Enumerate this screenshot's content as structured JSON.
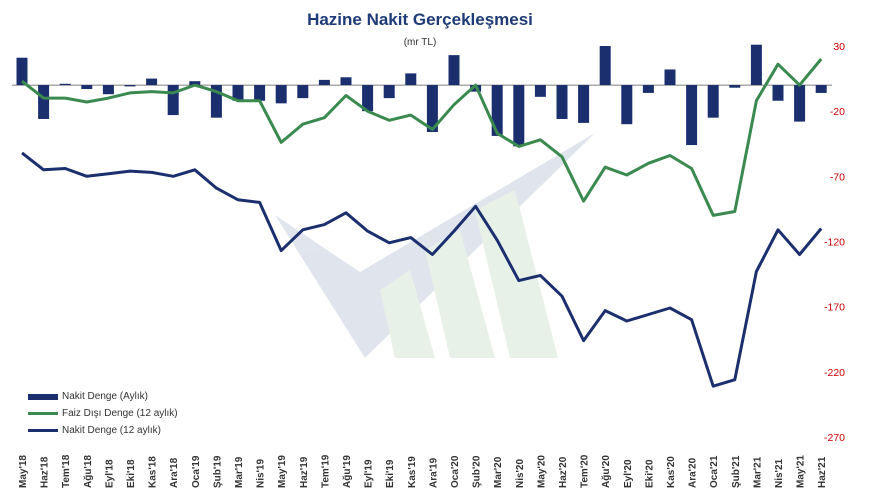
{
  "chart_data": {
    "type": "bar",
    "title": "Hazine Nakit Gerçekleşmesi",
    "subtitle": "(mr TL)",
    "categories": [
      "May'18",
      "Haz'18",
      "Tem'18",
      "Ağu'18",
      "Eyl'18",
      "Eki'18",
      "Kas'18",
      "Ara'18",
      "Oca'19",
      "Şub'19",
      "Mar'19",
      "Nis'19",
      "May'19",
      "Haz'19",
      "Tem'19",
      "Ağu'19",
      "Eyl'19",
      "Eki'19",
      "Kas'19",
      "Ara'19",
      "Oca'20",
      "Şub'20",
      "Mar'20",
      "Nis'20",
      "May'20",
      "Haz'20",
      "Tem'20",
      "Ağu'20",
      "Eyl'20",
      "Eki'20",
      "Kas'20",
      "Ara'20",
      "Oca'21",
      "Şub'21",
      "Mar'21",
      "Nis'21",
      "May'21",
      "Haz'21"
    ],
    "yaxis": {
      "min": -270,
      "max": 30,
      "ticks": [
        30,
        -20,
        -70,
        -120,
        -170,
        -220,
        -270
      ],
      "position": "right",
      "color": "#cc0000"
    },
    "series": [
      {
        "name": "Nakit Denge (Aylık)",
        "type": "bar",
        "color": "#1b2f6e",
        "values": [
          21,
          -26,
          1,
          -3,
          -7,
          -1,
          5,
          -23,
          3,
          -25,
          -12,
          -12,
          -14,
          -10,
          4,
          6,
          -20,
          -10,
          9,
          -36,
          23,
          -5,
          -39,
          -47,
          -9,
          -26,
          -29,
          30,
          -30,
          -6,
          12,
          -46,
          -25,
          -2,
          31,
          -12,
          -28,
          -6
        ]
      },
      {
        "name": "Faiz Dışı Denge (12 aylık)",
        "type": "line",
        "color": "#3a8a4f",
        "values": [
          3,
          -10,
          -10,
          -13,
          -10,
          -6,
          -5,
          -6,
          0,
          -5,
          -12,
          -12,
          -44,
          -30,
          -25,
          -8,
          -20,
          -27,
          -23,
          -34,
          -15,
          0,
          -37,
          -47,
          -42,
          -55,
          -89,
          -63,
          -69,
          -60,
          -54,
          -64,
          -100,
          -97,
          -12,
          16,
          0,
          20
        ]
      },
      {
        "name": "Nakit Denge (12 aylık)",
        "type": "line",
        "color": "#1b2f6e",
        "values": [
          -52,
          -65,
          -64,
          -70,
          -68,
          -66,
          -67,
          -70,
          -65,
          -79,
          -88,
          -90,
          -127,
          -111,
          -107,
          -98,
          -112,
          -121,
          -117,
          -130,
          -112,
          -93,
          -119,
          -150,
          -146,
          -162,
          -196,
          -173,
          -181,
          -176,
          -171,
          -180,
          -231,
          -226,
          -143,
          -111,
          -130,
          -110
        ]
      }
    ],
    "legend": [
      "Nakit Denge (Aylık)",
      "Faiz Dışı Denge (12 aylık)",
      "Nakit Denge (12 aylık)"
    ],
    "legend_position": "bottom-left",
    "grid": false
  }
}
